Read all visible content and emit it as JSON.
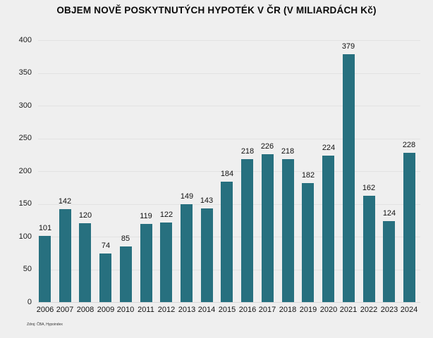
{
  "title": "OBJEM NOVĚ POSKYTNUTÝCH HYPOTÉK V ČR (V MILIARDÁCH Kč)",
  "source": "Zdroj: ČBA, Hypoindex",
  "colors": {
    "bar": "#27707f",
    "background": "#efefef",
    "gridline": "#e2e2e2",
    "text": "#111111"
  },
  "chart_data": {
    "type": "bar",
    "title": "OBJEM NOVĚ POSKYTNUTÝCH HYPOTÉK V ČR (V MILIARDÁCH Kč)",
    "categories": [
      "2006",
      "2007",
      "2008",
      "2009",
      "2010",
      "2011",
      "2012",
      "2013",
      "2014",
      "2015",
      "2016",
      "2017",
      "2018",
      "2019",
      "2020",
      "2021",
      "2022",
      "2023",
      "2024"
    ],
    "values": [
      101,
      142,
      120,
      74,
      85,
      119,
      122,
      149,
      143,
      184,
      218,
      226,
      218,
      182,
      224,
      379,
      162,
      124,
      228
    ],
    "xlabel": "",
    "ylabel": "",
    "ylim": [
      0,
      400
    ],
    "ytick_step": 50,
    "yticks": [
      0,
      50,
      100,
      150,
      200,
      250,
      300,
      350,
      400
    ],
    "grid": true,
    "value_labels": true,
    "legend": "none"
  }
}
